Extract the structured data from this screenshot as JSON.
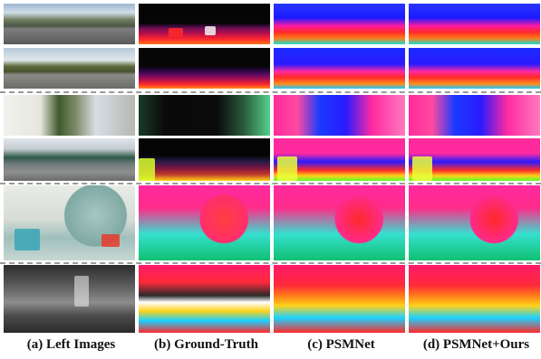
{
  "figure": {
    "captions": {
      "a": "(a) Left Images",
      "b": "(b) Ground-Truth",
      "c": "(c) PSMNet",
      "d": "(d) PSMNet+Ours"
    }
  }
}
